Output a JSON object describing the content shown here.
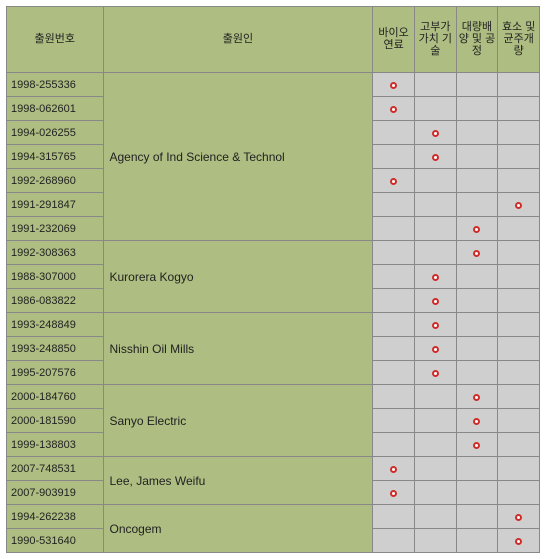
{
  "headers": {
    "appno": "출원번호",
    "applicant": "출원인",
    "cat1": "바이오\n연료",
    "cat2": "고부가\n가치\n기술",
    "cat3": "대량배\n양 및\n공정",
    "cat4": "효소\n및\n균주개\n량"
  },
  "rows": [
    {
      "appno": "1998-255336",
      "marks": [
        1,
        0,
        0,
        0
      ]
    },
    {
      "appno": "1998-062601",
      "marks": [
        1,
        0,
        0,
        0
      ]
    },
    {
      "appno": "1994-026255",
      "marks": [
        0,
        1,
        0,
        0
      ]
    },
    {
      "appno": "1994-315765",
      "marks": [
        0,
        1,
        0,
        0
      ]
    },
    {
      "appno": "1992-268960",
      "marks": [
        1,
        0,
        0,
        0
      ]
    },
    {
      "appno": "1991-291847",
      "marks": [
        0,
        0,
        0,
        1
      ]
    },
    {
      "appno": "1991-232069",
      "marks": [
        0,
        0,
        1,
        0
      ]
    },
    {
      "appno": "1992-308363",
      "marks": [
        0,
        0,
        1,
        0
      ]
    },
    {
      "appno": "1988-307000",
      "marks": [
        0,
        1,
        0,
        0
      ]
    },
    {
      "appno": "1986-083822",
      "marks": [
        0,
        1,
        0,
        0
      ]
    },
    {
      "appno": "1993-248849",
      "marks": [
        0,
        1,
        0,
        0
      ]
    },
    {
      "appno": "1993-248850",
      "marks": [
        0,
        1,
        0,
        0
      ]
    },
    {
      "appno": "1995-207576",
      "marks": [
        0,
        1,
        0,
        0
      ]
    },
    {
      "appno": "2000-184760",
      "marks": [
        0,
        0,
        1,
        0
      ]
    },
    {
      "appno": "2000-181590",
      "marks": [
        0,
        0,
        1,
        0
      ]
    },
    {
      "appno": "1999-138803",
      "marks": [
        0,
        0,
        1,
        0
      ]
    },
    {
      "appno": "2007-748531",
      "marks": [
        1,
        0,
        0,
        0
      ]
    },
    {
      "appno": "2007-903919",
      "marks": [
        1,
        0,
        0,
        0
      ]
    },
    {
      "appno": "1994-262238",
      "marks": [
        0,
        0,
        0,
        1
      ]
    },
    {
      "appno": "1990-531640",
      "marks": [
        0,
        0,
        0,
        1
      ]
    }
  ],
  "groups": [
    {
      "start": 0,
      "span": 7,
      "applicant": "Agency of Ind Science & Technol"
    },
    {
      "start": 7,
      "span": 3,
      "applicant": "Kurorera Kogyo"
    },
    {
      "start": 10,
      "span": 3,
      "applicant": "Nisshin Oil Mills"
    },
    {
      "start": 13,
      "span": 3,
      "applicant": "Sanyo Electric"
    },
    {
      "start": 16,
      "span": 2,
      "applicant": "Lee, James Weifu"
    },
    {
      "start": 18,
      "span": 2,
      "applicant": "Oncogem"
    }
  ]
}
